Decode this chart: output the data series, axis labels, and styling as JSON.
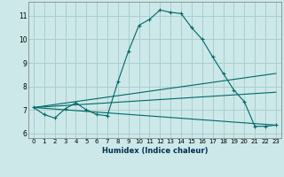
{
  "xlabel": "Humidex (Indice chaleur)",
  "xlim": [
    -0.5,
    23.5
  ],
  "ylim": [
    5.8,
    11.6
  ],
  "yticks": [
    6,
    7,
    8,
    9,
    10,
    11
  ],
  "xticks": [
    0,
    1,
    2,
    3,
    4,
    5,
    6,
    7,
    8,
    9,
    10,
    11,
    12,
    13,
    14,
    15,
    16,
    17,
    18,
    19,
    20,
    21,
    22,
    23
  ],
  "bg_color": "#cce8e8",
  "line_color": "#006868",
  "grid_color": "#aacece",
  "main_series": {
    "x": [
      0,
      1,
      2,
      3,
      4,
      5,
      6,
      7,
      8,
      9,
      10,
      11,
      12,
      13,
      14,
      15,
      16,
      17,
      18,
      19,
      20,
      21,
      22,
      23
    ],
    "y": [
      7.1,
      6.8,
      6.65,
      7.05,
      7.3,
      7.0,
      6.8,
      6.75,
      8.2,
      9.5,
      10.6,
      10.85,
      11.25,
      11.15,
      11.1,
      10.5,
      10.0,
      9.25,
      8.55,
      7.85,
      7.35,
      6.3,
      6.3,
      6.35
    ]
  },
  "ref_lines": [
    {
      "x": [
        0,
        23
      ],
      "y": [
        7.1,
        8.55
      ]
    },
    {
      "x": [
        0,
        23
      ],
      "y": [
        7.1,
        7.75
      ]
    },
    {
      "x": [
        0,
        23
      ],
      "y": [
        7.1,
        6.35
      ]
    }
  ]
}
